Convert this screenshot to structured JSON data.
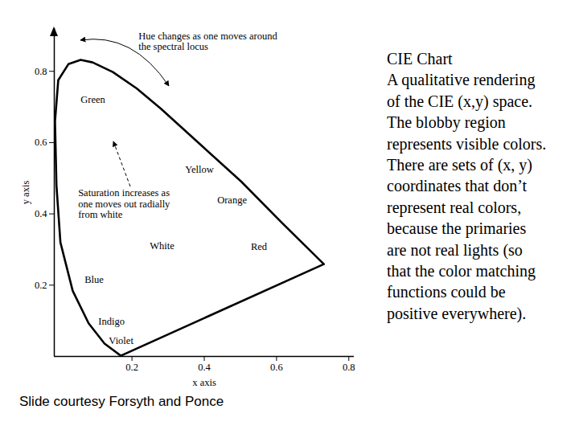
{
  "chart_data": {
    "type": "line",
    "title": "CIE Chart",
    "description": [
      "A qualitative rendering",
      "of the CIE (x,y) space.",
      "The blobby region",
      "represents visible colors.",
      "There are sets of (x, y)",
      "coordinates that don’t",
      "represent real colors,",
      "because the primaries",
      "are not real lights (so",
      "that the color matching",
      "functions could be",
      "positive everywhere)."
    ],
    "caption": "Slide courtesy Forsyth and Ponce",
    "xlabel": "x axis",
    "ylabel": "y axis",
    "x": [
      0.169,
      0.124,
      0.08,
      0.036,
      0.002,
      -0.009,
      -0.013,
      -0.004,
      0.024,
      0.058,
      0.091,
      0.147,
      0.213,
      0.28,
      0.391,
      0.502,
      0.613,
      0.731,
      0.169
    ],
    "values": [
      0.002,
      0.036,
      0.093,
      0.184,
      0.32,
      0.48,
      0.66,
      0.775,
      0.82,
      0.832,
      0.825,
      0.798,
      0.752,
      0.695,
      0.593,
      0.491,
      0.377,
      0.259,
      0.002
    ],
    "color": "#000000",
    "xlim": [
      -0.015,
      0.815
    ],
    "ylim": [
      0,
      0.92
    ],
    "xticks": [
      0.2,
      0.4,
      0.6,
      0.8
    ],
    "yticks": [
      0.2,
      0.4,
      0.6,
      0.8
    ],
    "grid": false,
    "annotations": [
      {
        "text": "Hue changes as one moves around\nthe spectral locus",
        "x": 0.218,
        "y": 0.911
      },
      {
        "text": "Green",
        "x": 0.058,
        "y": 0.732
      },
      {
        "text": "Yellow",
        "x": 0.347,
        "y": 0.536
      },
      {
        "text": "Saturation increases as\none moves out radially\nfrom white",
        "x": 0.051,
        "y": 0.47
      },
      {
        "text": "Orange",
        "x": 0.436,
        "y": 0.45
      },
      {
        "text": "White",
        "x": 0.249,
        "y": 0.323
      },
      {
        "text": "Red",
        "x": 0.529,
        "y": 0.32
      },
      {
        "text": "Blue",
        "x": 0.069,
        "y": 0.227
      },
      {
        "text": "Indigo",
        "x": 0.107,
        "y": 0.109
      },
      {
        "text": "Violet",
        "x": 0.136,
        "y": 0.057
      }
    ]
  }
}
